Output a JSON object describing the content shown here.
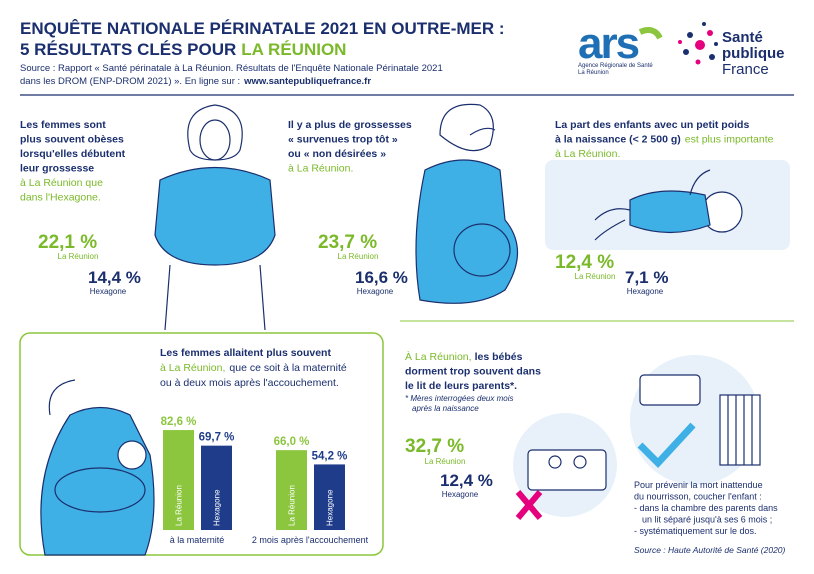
{
  "header": {
    "title_1": "ENQUÊTE NATIONALE PÉRINATALE 2021 EN OUTRE-MER :",
    "title_2a": "5 RÉSULTATS CLÉS POUR",
    "title_2b": "LA RÉUNION",
    "source_1": "Source : Rapport « Santé périnatale à La Réunion. Résultats de l'Enquête Nationale Périnatale 2021",
    "source_2": "dans les DROM (ENP-DROM 2021) ». En ligne sur :",
    "source_url": "www.santepubliquefrance.fr"
  },
  "logos": {
    "ars": "ars",
    "ars_line1": "Agence Régionale de Santé",
    "ars_line2": "La Réunion",
    "spf": [
      "Santé",
      "publique",
      "France"
    ]
  },
  "findings": [
    {
      "text": [
        "Les femmes sont",
        "plus souvent obèses",
        "lorsqu'elles débutent",
        "leur grossesse"
      ],
      "highlight": [
        "à La Réunion que",
        "dans l'Hexagone."
      ],
      "reunion_value": "22,1 %",
      "reunion_label": "La Réunion",
      "hexagone_value": "14,4 %",
      "hexagone_label": "Hexagone"
    },
    {
      "text": [
        "Il y a plus de grossesses",
        "« survenues trop tôt »",
        "ou « non désirées »"
      ],
      "highlight": [
        "à La Réunion."
      ],
      "reunion_value": "23,7 %",
      "reunion_label": "La Réunion",
      "hexagone_value": "16,6 %",
      "hexagone_label": "Hexagone"
    },
    {
      "text": [
        "La part des enfants avec un petit poids",
        "à la naissance (< 2 500 g)"
      ],
      "highlight": [
        "est plus importante",
        "à La Réunion."
      ],
      "reunion_value": "12,4 %",
      "reunion_label": "La Réunion",
      "hexagone_value": "7,1 %",
      "hexagone_label": "Hexagone"
    }
  ],
  "breastfeeding": {
    "line_1": "Les femmes allaitent plus souvent",
    "highlight": "à La Réunion,",
    "line_2": "que ce soit à la maternité",
    "line_3": "ou à deux mois après l'accouchement."
  },
  "chart_data": {
    "type": "bar",
    "categories": [
      "à la maternité",
      "2 mois après l'accouchement"
    ],
    "series": [
      {
        "name": "La Réunion",
        "color": "#8cc63f",
        "values": [
          82.6,
          66.0
        ],
        "value_labels": [
          "82,6 %",
          "66,0 %"
        ]
      },
      {
        "name": "Hexagone",
        "color": "#1f3c8a",
        "values": [
          69.7,
          54.2
        ],
        "value_labels": [
          "69,7 %",
          "54,2 %"
        ]
      }
    ]
  },
  "cosleeping": {
    "highlight": "À La Réunion,",
    "text": [
      "les bébés",
      "dorment trop souvent dans",
      "le lit de leurs parents*."
    ],
    "note": [
      "* Mères interrogées deux mois",
      "après la naissance"
    ],
    "reunion_value": "32,7 %",
    "reunion_label": "La Réunion",
    "hexagone_value": "12,4 %",
    "hexagone_label": "Hexagone",
    "advice": [
      "Pour prévenir la mort inattendue",
      "du nourrisson, coucher l'enfant :",
      "- dans la chambre des parents dans",
      "un lit séparé jusqu'à ses 6 mois ;",
      "- systématiquement sur le dos."
    ],
    "source": "Source : Haute Autorité de Santé (2020)"
  }
}
